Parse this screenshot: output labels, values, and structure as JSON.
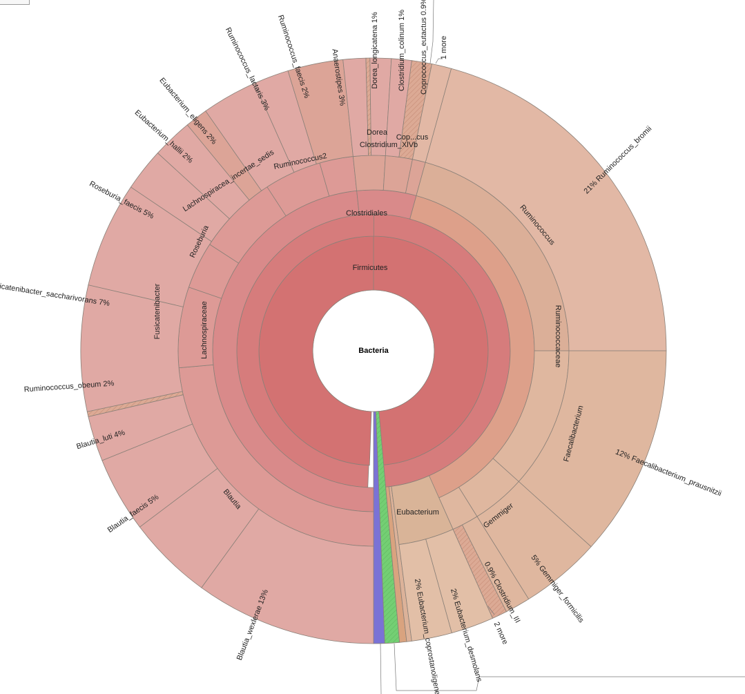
{
  "chart_data": {
    "type": "sunburst",
    "root": "Bacteria",
    "unit": "%",
    "colors": {
      "firmicutes": "#d37272",
      "clostridiales": "#d67c7c",
      "lachno_family": "#d98a8a",
      "lachno_genus": "#dd9a96",
      "lachno_species": "#e0a9a4",
      "lachno_mid": "#dca497",
      "rumino_family": "#dda08a",
      "rumino_genus": "#dbaf98",
      "rumino_species": "#e2b8a5",
      "faecali": "#dfb79f",
      "eubact": "#d9b498",
      "eubact_species": "#e2bfa7",
      "blue": "#7a72d6",
      "green": "#72cc72",
      "tan_thin": "#d9a37f",
      "hatch": "#d99580"
    },
    "center": {
      "label": "Bacteria"
    },
    "firmicutes": {
      "label": "Firmicutes"
    },
    "clostridiales": {
      "label": "Clostridiales"
    },
    "families": [
      {
        "label": "Lachnospiraceae"
      },
      {
        "label": "Ruminococcaceae"
      }
    ],
    "genera": [
      {
        "label": "Blautia"
      },
      {
        "label": "Fusicatenibacter"
      },
      {
        "label": "Roseburia"
      },
      {
        "label": "Lachnospiracea_incertae_sedis"
      },
      {
        "label": "Ruminococcus2"
      },
      {
        "label": "Dorea"
      },
      {
        "label": "Clostridium_XlVb"
      },
      {
        "label": "Cop...cus"
      },
      {
        "label": "Ruminococcus"
      },
      {
        "label": "Faecalibacterium"
      },
      {
        "label": "Gemmiger"
      },
      {
        "label": "Eubacterium"
      }
    ],
    "species": [
      {
        "name": "Ruminococcus_bromii",
        "pct": "21%"
      },
      {
        "name": "Faecalibacterium_prausnitzii",
        "pct": "12%"
      },
      {
        "name": "Gemmiger_formicilis",
        "pct": "5%"
      },
      {
        "name": "Clostridium_III",
        "pct": "0.9%"
      },
      {
        "name": "Eubacterium_desmolans",
        "pct": "2%"
      },
      {
        "name": "Eubacterium_coprostanoligenes",
        "pct": "2%"
      },
      {
        "name": "Blautia_wexlerae",
        "pct": "13%"
      },
      {
        "name": "Blautia_faecis",
        "pct": "5%"
      },
      {
        "name": "Blautia_luti",
        "pct": "4%"
      },
      {
        "name": "Ruminococcus_obeum",
        "pct": "2%"
      },
      {
        "name": "Fusicatenibacter_saccharivorans",
        "pct": "7%"
      },
      {
        "name": "Roseburia_faecis",
        "pct": "5%"
      },
      {
        "name": "Eubacterium_hallii",
        "pct": "2%"
      },
      {
        "name": "Eubacterium_eligens",
        "pct": "2%"
      },
      {
        "name": "Ruminococcus_lactaris",
        "pct": "3%"
      },
      {
        "name": "Ruminococcus_faecis",
        "pct": "2%"
      },
      {
        "name": "Anaerostipes",
        "pct": "3%"
      },
      {
        "name": "Dorea_longicatena",
        "pct": "1%"
      },
      {
        "name": "Clostridium_colinum",
        "pct": "1%"
      },
      {
        "name": "Coprococcus_eutactus",
        "pct": "0.9%"
      }
    ],
    "more": {
      "top": "1 more",
      "bottom": "2 more"
    }
  }
}
